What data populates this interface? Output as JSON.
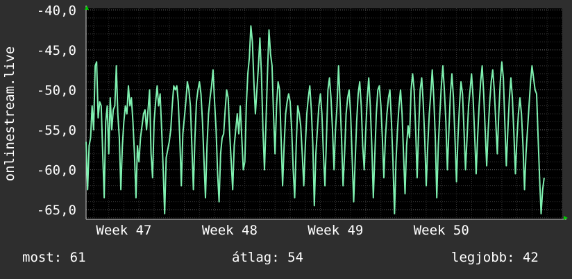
{
  "chart_data": {
    "type": "line",
    "ylabel": "onlinestream.live",
    "y_ticks": [
      "-40,0",
      "-45,0",
      "-50,0",
      "-55,0",
      "-60,0",
      "-65,0"
    ],
    "y_tick_values": [
      -40,
      -45,
      -50,
      -55,
      -60,
      -65
    ],
    "ylim": [
      -66.2,
      -39.8
    ],
    "x_ticks": [
      "Week 47",
      "Week 48",
      "Week 49",
      "Week 50"
    ],
    "x_tick_positions": [
      1,
      8,
      15,
      22
    ],
    "xlim": [
      -1.5,
      30
    ],
    "grid": true,
    "background": "#000000",
    "line_color": "#7ff0b0",
    "series": [
      {
        "values": [
          [
            -1.5,
            -56.5
          ],
          [
            -1.4,
            -62.5
          ],
          [
            -1.3,
            -57.0
          ],
          [
            -1.2,
            -56.0
          ],
          [
            -1.1,
            -52.0
          ],
          [
            -1.0,
            -55.0
          ],
          [
            -0.9,
            -47.0
          ],
          [
            -0.8,
            -46.5
          ],
          [
            -0.7,
            -53.5
          ],
          [
            -0.6,
            -51.5
          ],
          [
            -0.5,
            -52.0
          ],
          [
            -0.4,
            -58.0
          ],
          [
            -0.3,
            -63.5
          ],
          [
            -0.2,
            -54.0
          ],
          [
            -0.1,
            -52.0
          ],
          [
            0.0,
            -58.0
          ],
          [
            0.1,
            -51.0
          ],
          [
            0.2,
            -55.0
          ],
          [
            0.3,
            -52.5
          ],
          [
            0.4,
            -52.0
          ],
          [
            0.5,
            -47.0
          ],
          [
            0.6,
            -53.0
          ],
          [
            0.7,
            -56.0
          ],
          [
            0.8,
            -62.5
          ],
          [
            0.9,
            -57.0
          ],
          [
            1.0,
            -54.0
          ],
          [
            1.1,
            -52.0
          ],
          [
            1.2,
            -53.0
          ],
          [
            1.3,
            -49.5
          ],
          [
            1.4,
            -52.0
          ],
          [
            1.5,
            -51.0
          ],
          [
            1.6,
            -54.0
          ],
          [
            1.7,
            -58.0
          ],
          [
            1.8,
            -63.5
          ],
          [
            1.9,
            -57.0
          ],
          [
            2.0,
            -59.0
          ],
          [
            2.1,
            -56.0
          ],
          [
            2.2,
            -54.5
          ],
          [
            2.3,
            -53.0
          ],
          [
            2.4,
            -52.5
          ],
          [
            2.5,
            -55.0
          ],
          [
            2.6,
            -52.5
          ],
          [
            2.7,
            -50.0
          ],
          [
            2.8,
            -58.0
          ],
          [
            2.9,
            -61.0
          ],
          [
            3.0,
            -54.0
          ],
          [
            3.1,
            -51.5
          ],
          [
            3.2,
            -49.5
          ],
          [
            3.3,
            -52.0
          ],
          [
            3.4,
            -50.5
          ],
          [
            3.5,
            -55.0
          ],
          [
            3.6,
            -60.0
          ],
          [
            3.7,
            -65.5
          ],
          [
            3.8,
            -58.5
          ],
          [
            3.9,
            -57.5
          ],
          [
            4.0,
            -56.5
          ],
          [
            4.1,
            -55.0
          ],
          [
            4.2,
            -52.0
          ],
          [
            4.3,
            -49.5
          ],
          [
            4.4,
            -50.0
          ],
          [
            4.5,
            -49.5
          ],
          [
            4.6,
            -51.5
          ],
          [
            4.7,
            -56.0
          ],
          [
            4.8,
            -62.0
          ],
          [
            4.9,
            -55.5
          ],
          [
            5.0,
            -53.5
          ],
          [
            5.1,
            -51.5
          ],
          [
            5.2,
            -49.0
          ],
          [
            5.3,
            -50.0
          ],
          [
            5.4,
            -52.0
          ],
          [
            5.5,
            -57.0
          ],
          [
            5.6,
            -62.5
          ],
          [
            5.7,
            -56.0
          ],
          [
            5.8,
            -51.5
          ],
          [
            5.9,
            -50.0
          ],
          [
            6.0,
            -49.0
          ],
          [
            6.1,
            -50.5
          ],
          [
            6.2,
            -54.0
          ],
          [
            6.3,
            -59.0
          ],
          [
            6.4,
            -63.5
          ],
          [
            6.5,
            -57.0
          ],
          [
            6.6,
            -53.0
          ],
          [
            6.7,
            -51.0
          ],
          [
            6.8,
            -49.5
          ],
          [
            6.9,
            -47.5
          ],
          [
            7.0,
            -51.5
          ],
          [
            7.1,
            -55.0
          ],
          [
            7.2,
            -60.5
          ],
          [
            7.3,
            -64.0
          ],
          [
            7.4,
            -58.0
          ],
          [
            7.5,
            -56.0
          ],
          [
            7.6,
            -55.5
          ],
          [
            7.7,
            -52.5
          ],
          [
            7.8,
            -50.0
          ],
          [
            7.9,
            -51.0
          ],
          [
            8.0,
            -55.5
          ],
          [
            8.1,
            -59.0
          ],
          [
            8.2,
            -62.5
          ],
          [
            8.3,
            -57.0
          ],
          [
            8.4,
            -55.0
          ],
          [
            8.5,
            -53.0
          ],
          [
            8.6,
            -55.5
          ],
          [
            8.7,
            -52.0
          ],
          [
            8.8,
            -56.0
          ],
          [
            8.9,
            -60.0
          ],
          [
            9.0,
            -59.0
          ],
          [
            9.1,
            -52.0
          ],
          [
            9.2,
            -48.0
          ],
          [
            9.3,
            -46.0
          ],
          [
            9.4,
            -42.0
          ],
          [
            9.5,
            -44.0
          ],
          [
            9.6,
            -49.0
          ],
          [
            9.7,
            -53.0
          ],
          [
            9.8,
            -50.0
          ],
          [
            9.9,
            -47.0
          ],
          [
            10.0,
            -43.5
          ],
          [
            10.1,
            -48.0
          ],
          [
            10.2,
            -55.0
          ],
          [
            10.3,
            -60.0
          ],
          [
            10.4,
            -54.0
          ],
          [
            10.5,
            -48.0
          ],
          [
            10.6,
            -42.5
          ],
          [
            10.7,
            -45.5
          ],
          [
            10.8,
            -47.0
          ],
          [
            10.9,
            -53.0
          ],
          [
            11.0,
            -58.0
          ],
          [
            11.1,
            -52.0
          ],
          [
            11.2,
            -49.0
          ],
          [
            11.3,
            -50.0
          ],
          [
            11.4,
            -56.0
          ],
          [
            11.5,
            -62.0
          ],
          [
            11.6,
            -57.0
          ],
          [
            11.7,
            -53.0
          ],
          [
            11.8,
            -51.5
          ],
          [
            11.9,
            -50.5
          ],
          [
            12.0,
            -51.5
          ],
          [
            12.1,
            -55.0
          ],
          [
            12.2,
            -60.0
          ],
          [
            12.3,
            -63.5
          ],
          [
            12.4,
            -57.0
          ],
          [
            12.5,
            -52.0
          ],
          [
            12.6,
            -53.0
          ],
          [
            12.7,
            -54.5
          ],
          [
            12.8,
            -58.0
          ],
          [
            12.9,
            -62.0
          ],
          [
            13.0,
            -57.0
          ],
          [
            13.1,
            -53.0
          ],
          [
            13.2,
            -51.0
          ],
          [
            13.3,
            -49.5
          ],
          [
            13.4,
            -52.5
          ],
          [
            13.5,
            -57.0
          ],
          [
            13.6,
            -64.5
          ],
          [
            13.7,
            -58.0
          ],
          [
            13.8,
            -55.0
          ],
          [
            13.9,
            -52.0
          ],
          [
            14.0,
            -50.5
          ],
          [
            14.1,
            -53.0
          ],
          [
            14.2,
            -58.0
          ],
          [
            14.3,
            -62.0
          ],
          [
            14.4,
            -56.0
          ],
          [
            14.5,
            -50.0
          ],
          [
            14.6,
            -48.5
          ],
          [
            14.7,
            -51.0
          ],
          [
            14.8,
            -55.0
          ],
          [
            14.9,
            -60.0
          ],
          [
            15.0,
            -55.0
          ],
          [
            15.1,
            -52.0
          ],
          [
            15.2,
            -47.0
          ],
          [
            15.3,
            -51.5
          ],
          [
            15.4,
            -56.0
          ],
          [
            15.5,
            -62.0
          ],
          [
            15.6,
            -58.0
          ],
          [
            15.7,
            -53.0
          ],
          [
            15.8,
            -51.0
          ],
          [
            15.9,
            -50.0
          ],
          [
            16.0,
            -53.0
          ],
          [
            16.1,
            -58.5
          ],
          [
            16.2,
            -64.0
          ],
          [
            16.3,
            -59.0
          ],
          [
            16.4,
            -54.0
          ],
          [
            16.5,
            -50.5
          ],
          [
            16.6,
            -49.0
          ],
          [
            16.7,
            -52.0
          ],
          [
            16.8,
            -57.0
          ],
          [
            16.9,
            -60.0
          ],
          [
            17.0,
            -55.0
          ],
          [
            17.1,
            -51.0
          ],
          [
            17.2,
            -48.5
          ],
          [
            17.3,
            -52.0
          ],
          [
            17.4,
            -57.0
          ],
          [
            17.5,
            -63.5
          ],
          [
            17.6,
            -58.0
          ],
          [
            17.7,
            -53.0
          ],
          [
            17.8,
            -50.0
          ],
          [
            17.9,
            -49.5
          ],
          [
            18.0,
            -52.0
          ],
          [
            18.1,
            -56.0
          ],
          [
            18.2,
            -61.0
          ],
          [
            18.3,
            -56.0
          ],
          [
            18.4,
            -53.0
          ],
          [
            18.5,
            -51.0
          ],
          [
            18.6,
            -50.0
          ],
          [
            18.7,
            -54.0
          ],
          [
            18.8,
            -59.0
          ],
          [
            18.9,
            -65.5
          ],
          [
            19.0,
            -59.0
          ],
          [
            19.1,
            -55.0
          ],
          [
            19.2,
            -52.0
          ],
          [
            19.3,
            -50.0
          ],
          [
            19.4,
            -53.0
          ],
          [
            19.5,
            -58.0
          ],
          [
            19.6,
            -63.0
          ],
          [
            19.7,
            -57.0
          ],
          [
            19.8,
            -54.5
          ],
          [
            19.9,
            -56.0
          ],
          [
            20.0,
            -50.0
          ],
          [
            20.1,
            -48.0
          ],
          [
            20.2,
            -50.0
          ],
          [
            20.3,
            -55.0
          ],
          [
            20.4,
            -61.0
          ],
          [
            20.5,
            -55.0
          ],
          [
            20.6,
            -50.0
          ],
          [
            20.7,
            -48.5
          ],
          [
            20.8,
            -51.5
          ],
          [
            20.9,
            -56.0
          ],
          [
            21.0,
            -62.0
          ],
          [
            21.1,
            -57.0
          ],
          [
            21.2,
            -53.0
          ],
          [
            21.3,
            -50.5
          ],
          [
            21.4,
            -47.5
          ],
          [
            21.5,
            -51.0
          ],
          [
            21.6,
            -56.0
          ],
          [
            21.7,
            -63.5
          ],
          [
            21.8,
            -57.0
          ],
          [
            21.9,
            -53.0
          ],
          [
            22.0,
            -49.5
          ],
          [
            22.1,
            -47.0
          ],
          [
            22.2,
            -50.0
          ],
          [
            22.3,
            -54.0
          ],
          [
            22.4,
            -60.0
          ],
          [
            22.5,
            -55.0
          ],
          [
            22.6,
            -50.5
          ],
          [
            22.7,
            -48.0
          ],
          [
            22.8,
            -51.0
          ],
          [
            22.9,
            -56.0
          ],
          [
            23.0,
            -61.5
          ],
          [
            23.1,
            -56.0
          ],
          [
            23.2,
            -52.0
          ],
          [
            23.3,
            -49.0
          ],
          [
            23.4,
            -50.5
          ],
          [
            23.5,
            -55.0
          ],
          [
            23.6,
            -60.0
          ],
          [
            23.7,
            -56.0
          ],
          [
            23.8,
            -52.0
          ],
          [
            23.9,
            -50.0
          ],
          [
            24.0,
            -48.0
          ],
          [
            24.1,
            -51.0
          ],
          [
            24.2,
            -55.5
          ],
          [
            24.3,
            -60.5
          ],
          [
            24.4,
            -56.0
          ],
          [
            24.5,
            -52.0
          ],
          [
            24.6,
            -49.0
          ],
          [
            24.7,
            -47.0
          ],
          [
            24.8,
            -50.5
          ],
          [
            24.9,
            -55.0
          ],
          [
            25.0,
            -59.5
          ],
          [
            25.1,
            -55.0
          ],
          [
            25.2,
            -51.5
          ],
          [
            25.3,
            -49.0
          ],
          [
            25.4,
            -47.5
          ],
          [
            25.5,
            -50.0
          ],
          [
            25.6,
            -54.0
          ],
          [
            25.7,
            -58.0
          ],
          [
            25.8,
            -53.0
          ],
          [
            25.9,
            -49.0
          ],
          [
            26.0,
            -46.5
          ],
          [
            26.1,
            -48.5
          ],
          [
            26.2,
            -54.0
          ],
          [
            26.3,
            -59.5
          ],
          [
            26.4,
            -55.0
          ],
          [
            26.5,
            -51.0
          ],
          [
            26.6,
            -48.5
          ],
          [
            26.7,
            -51.0
          ],
          [
            26.8,
            -55.5
          ],
          [
            26.9,
            -60.5
          ],
          [
            27.0,
            -56.0
          ],
          [
            27.1,
            -53.0
          ],
          [
            27.2,
            -51.0
          ],
          [
            27.3,
            -53.0
          ],
          [
            27.4,
            -57.0
          ],
          [
            27.5,
            -62.5
          ],
          [
            27.6,
            -58.0
          ],
          [
            27.7,
            -55.0
          ],
          [
            27.8,
            -52.0
          ],
          [
            27.9,
            -49.0
          ],
          [
            28.0,
            -47.0
          ],
          [
            28.1,
            -48.5
          ],
          [
            28.2,
            -50.0
          ],
          [
            28.3,
            -50.5
          ],
          [
            28.4,
            -56.0
          ],
          [
            28.5,
            -61.0
          ],
          [
            28.6,
            -65.5
          ],
          [
            28.7,
            -62.5
          ],
          [
            28.8,
            -61.0
          ]
        ]
      }
    ]
  },
  "stats": {
    "now": "most: 61",
    "avg": "átlag: 54",
    "max": "legjobb: 42"
  }
}
